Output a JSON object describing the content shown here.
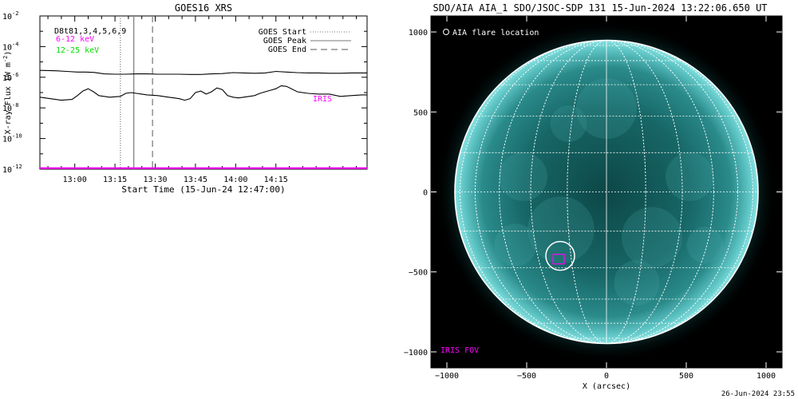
{
  "chart_data": [
    {
      "type": "line",
      "title": "GOES16 XRS",
      "xlabel": "Start Time (15-Jun-24 12:47:00)",
      "ylabel": "X-ray Flux (W m",
      "ylabel_sup": "-2",
      "ylabel_close": ")",
      "yscale": "log",
      "y_exponent_range": [
        -12,
        -2
      ],
      "x_range_minutes_after_start": [
        0,
        122
      ],
      "x_ticks": [
        {
          "label": "13:00",
          "minutes_after_start": 13
        },
        {
          "label": "13:15",
          "minutes_after_start": 28
        },
        {
          "label": "13:30",
          "minutes_after_start": 43
        },
        {
          "label": "13:45",
          "minutes_after_start": 58
        },
        {
          "label": "14:00",
          "minutes_after_start": 73
        },
        {
          "label": "14:15",
          "minutes_after_start": 88
        }
      ],
      "y_ticks": [
        {
          "base": "10",
          "exp": "-12"
        },
        {
          "base": "10",
          "exp": "-10"
        },
        {
          "base": "10",
          "exp": "-8"
        },
        {
          "base": "10",
          "exp": "-6"
        },
        {
          "base": "10",
          "exp": "-4"
        },
        {
          "base": "10",
          "exp": "-2"
        }
      ],
      "legend_left": [
        {
          "text": "D8t81,3,4,5,6,9",
          "color": "#000000"
        },
        {
          "text": "6-12 keV",
          "color": "#ff00ff"
        },
        {
          "text": "12-25 keV",
          "color": "#00dd00"
        }
      ],
      "legend_right": [
        {
          "text": "GOES Start",
          "style": "dotted"
        },
        {
          "text": "GOES Peak",
          "style": "solid"
        },
        {
          "text": "GOES End",
          "style": "dashed"
        }
      ],
      "vertical_markers": [
        {
          "name": "GOES Start",
          "minutes_after_start": 30,
          "style": "dotted"
        },
        {
          "name": "GOES Peak",
          "minutes_after_start": 35,
          "style": "solid"
        },
        {
          "name": "GOES End",
          "minutes_after_start": 42,
          "style": "dashed"
        }
      ],
      "annotation": {
        "text": "IRIS",
        "color": "#ff00ff"
      },
      "series": [
        {
          "color": "#000000",
          "x": [
            0,
            6,
            10,
            14,
            17,
            20,
            24,
            28,
            32,
            36,
            40,
            44,
            48,
            52,
            56,
            60,
            64,
            68,
            72,
            76,
            80,
            84,
            88,
            92,
            96,
            100,
            104,
            108,
            112,
            116,
            120,
            122
          ],
          "y_log10": [
            -5.55,
            -5.58,
            -5.62,
            -5.66,
            -5.66,
            -5.68,
            -5.78,
            -5.8,
            -5.8,
            -5.78,
            -5.78,
            -5.8,
            -5.8,
            -5.8,
            -5.82,
            -5.82,
            -5.78,
            -5.76,
            -5.7,
            -5.72,
            -5.74,
            -5.72,
            -5.62,
            -5.66,
            -5.7,
            -5.72,
            -5.72,
            -5.74,
            -5.74,
            -5.72,
            -5.72,
            -5.72
          ]
        },
        {
          "color": "#000000",
          "x": [
            0,
            4,
            8,
            12,
            14,
            16,
            18,
            20,
            22,
            26,
            30,
            32,
            34,
            36,
            38,
            40,
            44,
            48,
            50,
            52,
            54,
            56,
            58,
            60,
            62,
            64,
            66,
            68,
            70,
            72,
            74,
            76,
            78,
            80,
            82,
            84,
            86,
            88,
            90,
            92,
            96,
            100,
            104,
            108,
            112,
            116,
            120,
            122
          ],
          "y_log10": [
            -7.3,
            -7.4,
            -7.5,
            -7.45,
            -7.2,
            -6.9,
            -6.75,
            -6.95,
            -7.2,
            -7.3,
            -7.25,
            -7.05,
            -7.0,
            -7.05,
            -7.1,
            -7.15,
            -7.2,
            -7.3,
            -7.35,
            -7.4,
            -7.5,
            -7.4,
            -7.0,
            -6.9,
            -7.1,
            -6.95,
            -6.7,
            -6.8,
            -7.2,
            -7.3,
            -7.35,
            -7.3,
            -7.25,
            -7.2,
            -7.05,
            -6.95,
            -6.85,
            -6.75,
            -6.55,
            -6.6,
            -6.95,
            -7.05,
            -7.1,
            -7.1,
            -7.25,
            -7.2,
            -7.15,
            -7.15
          ]
        },
        {
          "color": "#ff00ff",
          "x": [
            0,
            122
          ],
          "y_log10": [
            -11.93,
            -11.93
          ]
        }
      ]
    },
    {
      "type": "image",
      "title": "SDO/AIA AIA_1 SDO/JSOC-SDP 131 15-Jun-2024 13:22:06.650 UT",
      "xlabel": "X (arcsec)",
      "x_range": [
        -1100,
        1100
      ],
      "y_range": [
        -1100,
        1100
      ],
      "x_ticks": [
        "−1000",
        "−500",
        "0",
        "500",
        "1000"
      ],
      "y_ticks": [
        "−1000",
        "−500",
        "0",
        "500",
        "1000"
      ],
      "x_tick_values": [
        -1000,
        -500,
        0,
        500,
        1000
      ],
      "y_tick_values": [
        -1000,
        -500,
        0,
        500,
        1000
      ],
      "solar_radius_arcsec": 950,
      "flare_location": {
        "label": "AIA flare location",
        "x": -290,
        "y": -400
      },
      "iris_fov": {
        "label": "IRIS FOV",
        "x": -300,
        "y": -420
      }
    }
  ],
  "footer": {
    "timestamp": "26-Jun-2024 23:55"
  },
  "colors": {
    "flux_trace": "#000000",
    "iris_band": "#ff00ff",
    "legend_green": "#00dd00",
    "image_background": "#000000",
    "euv_teal": "#00a0a0",
    "grid_white": "#ffffff"
  }
}
